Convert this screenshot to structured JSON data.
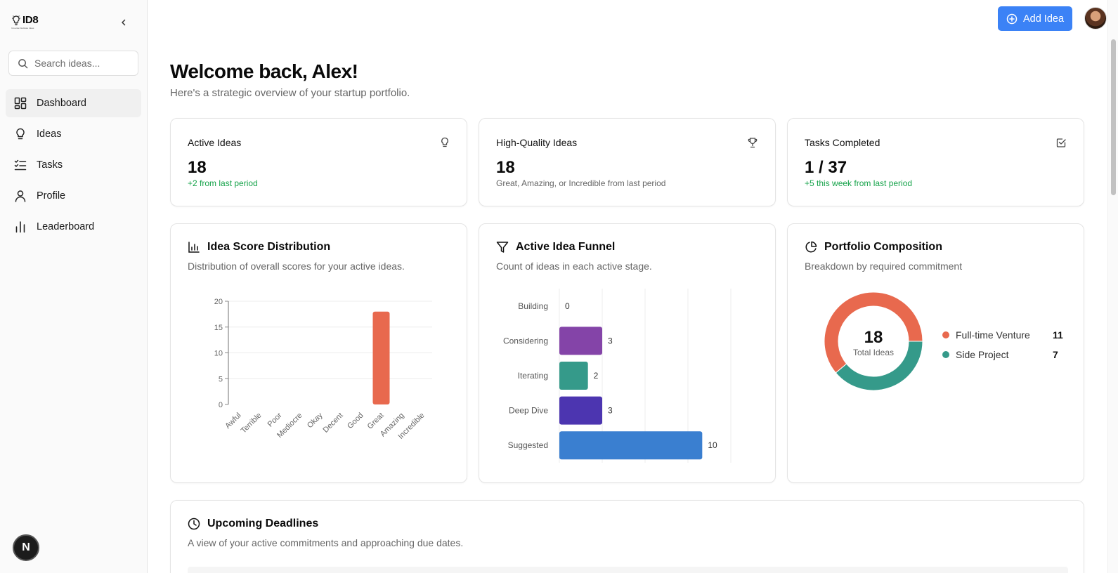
{
  "sidebar": {
    "logo_text": "ID8",
    "logo_sub": "Innovate Dedicate Ideas",
    "search_placeholder": "Search ideas...",
    "items": [
      {
        "label": "Dashboard",
        "icon": "dashboard-icon",
        "active": true
      },
      {
        "label": "Ideas",
        "icon": "lightbulb-icon"
      },
      {
        "label": "Tasks",
        "icon": "list-check-icon"
      },
      {
        "label": "Profile",
        "icon": "user-icon"
      },
      {
        "label": "Leaderboard",
        "icon": "bar-chart-icon"
      }
    ],
    "badge": "N"
  },
  "header": {
    "add_idea_label": "Add Idea"
  },
  "main": {
    "title": "Welcome back, Alex!",
    "subtitle": "Here's a strategic overview of your startup portfolio."
  },
  "stats": [
    {
      "label": "Active Ideas",
      "value": "18",
      "note": "+2 from last period",
      "note_color": "green",
      "icon": "lightbulb-icon"
    },
    {
      "label": "High-Quality Ideas",
      "value": "18",
      "note": "Great, Amazing, or Incredible from last period",
      "note_color": "gray",
      "icon": "trophy-icon"
    },
    {
      "label": "Tasks Completed",
      "value": "1 / 37",
      "note": "+5 this week from last period",
      "note_color": "green",
      "icon": "check-square-icon"
    }
  ],
  "charts": {
    "distribution": {
      "title": "Idea Score Distribution",
      "description": "Distribution of overall scores for your active ideas."
    },
    "funnel": {
      "title": "Active Idea Funnel",
      "description": "Count of ideas in each active stage."
    },
    "portfolio": {
      "title": "Portfolio Composition",
      "description": "Breakdown by required commitment",
      "center_value": "18",
      "center_label": "Total Ideas"
    }
  },
  "chart_data": [
    {
      "type": "bar",
      "title": "Idea Score Distribution",
      "categories": [
        "Awful",
        "Terrible",
        "Poor",
        "Mediocre",
        "Okay",
        "Decent",
        "Good",
        "Great",
        "Amazing",
        "Incredible"
      ],
      "values": [
        0,
        0,
        0,
        0,
        0,
        0,
        0,
        18,
        0,
        0
      ],
      "ylim": [
        0,
        20
      ],
      "yticks": [
        0,
        5,
        10,
        15,
        20
      ],
      "color": "#e8694e",
      "grid": true
    },
    {
      "type": "bar",
      "orientation": "horizontal",
      "title": "Active Idea Funnel",
      "categories": [
        "Building",
        "Considering",
        "Iterating",
        "Deep Dive",
        "Suggested"
      ],
      "values": [
        0,
        3,
        2,
        3,
        10
      ],
      "colors": [
        "#9ca3af",
        "#8444a8",
        "#359a8a",
        "#4c35b0",
        "#3a7fd0"
      ],
      "xlim": [
        0,
        12
      ],
      "grid": true
    },
    {
      "type": "pie",
      "title": "Portfolio Composition",
      "donut": true,
      "labels": [
        "Full-time Venture",
        "Side Project"
      ],
      "values": [
        11,
        7
      ],
      "colors": [
        "#e8694e",
        "#359a8a"
      ],
      "legend": "right"
    }
  ],
  "deadlines": {
    "title": "Upcoming Deadlines",
    "description": "A view of your active commitments and approaching due dates."
  }
}
